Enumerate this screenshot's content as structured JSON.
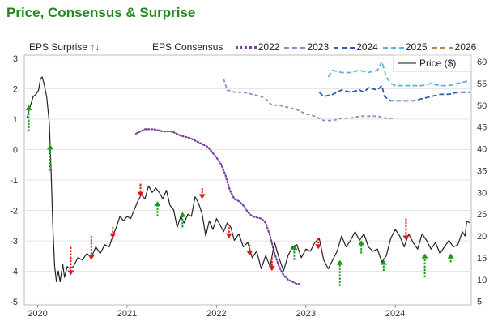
{
  "header": {
    "title": "Price, Consensus & Surprise"
  },
  "legend": {
    "surprise_label": "EPS Surprise",
    "up_glyph": "↑",
    "down_glyph": "↓",
    "consensus_label": "EPS Consensus",
    "price_label": "Price ($)"
  },
  "colors": {
    "price": "#222222",
    "surprise_up": "#1a9a1a",
    "surprise_down": "#e01818",
    "c2022": "#7b3fa5",
    "c2023": "#a87ec8",
    "c2024": "#2a5fb0",
    "c2025": "#5ab0e0",
    "c2026": "#b08a50",
    "grid": "#e3e3e3"
  },
  "chart_data": {
    "type": "line",
    "title": "Price, Consensus & Surprise",
    "x_axis": {
      "ticks": [
        "2020",
        "2021",
        "2022",
        "2023",
        "2024"
      ],
      "range": [
        2019.85,
        2024.85
      ]
    },
    "y_left": {
      "label": "EPS Surprise",
      "ticks": [
        3,
        2,
        1,
        0,
        -1,
        -2,
        -3,
        -4,
        -5
      ],
      "range": [
        -5.1,
        3.1
      ]
    },
    "y_right": {
      "label": "Price ($)",
      "ticks": [
        60,
        55,
        50,
        45,
        40,
        35,
        30,
        25,
        20,
        15,
        10,
        5
      ],
      "range": [
        4.2,
        61.5
      ]
    },
    "price": [
      [
        2019.88,
        47
      ],
      [
        2019.92,
        50
      ],
      [
        2019.95,
        52
      ],
      [
        2019.98,
        52.5
      ],
      [
        2020.01,
        53.5
      ],
      [
        2020.03,
        56
      ],
      [
        2020.05,
        56.5
      ],
      [
        2020.07,
        55
      ],
      [
        2020.1,
        52
      ],
      [
        2020.13,
        46
      ],
      [
        2020.15,
        35
      ],
      [
        2020.17,
        22
      ],
      [
        2020.19,
        13
      ],
      [
        2020.21,
        9.5
      ],
      [
        2020.23,
        12
      ],
      [
        2020.25,
        9.5
      ],
      [
        2020.28,
        13.5
      ],
      [
        2020.3,
        10.5
      ],
      [
        2020.33,
        13
      ],
      [
        2020.36,
        12.5
      ],
      [
        2020.4,
        13
      ],
      [
        2020.45,
        15
      ],
      [
        2020.5,
        14.5
      ],
      [
        2020.55,
        16
      ],
      [
        2020.6,
        15
      ],
      [
        2020.65,
        17.5
      ],
      [
        2020.7,
        16
      ],
      [
        2020.75,
        18
      ],
      [
        2020.8,
        17.5
      ],
      [
        2020.84,
        20
      ],
      [
        2020.88,
        22
      ],
      [
        2020.92,
        24.5
      ],
      [
        2020.96,
        23.5
      ],
      [
        2021.0,
        24.5
      ],
      [
        2021.04,
        24
      ],
      [
        2021.08,
        26
      ],
      [
        2021.12,
        28
      ],
      [
        2021.16,
        29.5
      ],
      [
        2021.2,
        28.5
      ],
      [
        2021.24,
        31.5
      ],
      [
        2021.28,
        30
      ],
      [
        2021.32,
        31
      ],
      [
        2021.36,
        30
      ],
      [
        2021.4,
        28.5
      ],
      [
        2021.44,
        30.5
      ],
      [
        2021.48,
        27
      ],
      [
        2021.52,
        26
      ],
      [
        2021.56,
        22
      ],
      [
        2021.6,
        24.5
      ],
      [
        2021.64,
        23
      ],
      [
        2021.68,
        25
      ],
      [
        2021.72,
        24.5
      ],
      [
        2021.76,
        29
      ],
      [
        2021.8,
        27.5
      ],
      [
        2021.84,
        25
      ],
      [
        2021.88,
        20
      ],
      [
        2021.92,
        23.5
      ],
      [
        2021.96,
        21.5
      ],
      [
        2022.0,
        24
      ],
      [
        2022.04,
        22.5
      ],
      [
        2022.08,
        21
      ],
      [
        2022.12,
        23
      ],
      [
        2022.16,
        22
      ],
      [
        2022.2,
        19
      ],
      [
        2022.25,
        20.5
      ],
      [
        2022.3,
        17.5
      ],
      [
        2022.35,
        18.5
      ],
      [
        2022.4,
        15
      ],
      [
        2022.45,
        16.5
      ],
      [
        2022.5,
        12.5
      ],
      [
        2022.55,
        15.5
      ],
      [
        2022.6,
        13
      ],
      [
        2022.65,
        18.5
      ],
      [
        2022.7,
        15
      ],
      [
        2022.75,
        12
      ],
      [
        2022.8,
        15.5
      ],
      [
        2022.85,
        17.5
      ],
      [
        2022.9,
        18
      ],
      [
        2022.95,
        15
      ],
      [
        2023.0,
        17
      ],
      [
        2023.05,
        16.5
      ],
      [
        2023.1,
        18.5
      ],
      [
        2023.15,
        19.5
      ],
      [
        2023.2,
        14.5
      ],
      [
        2023.25,
        12.5
      ],
      [
        2023.3,
        14.5
      ],
      [
        2023.35,
        16.5
      ],
      [
        2023.4,
        20
      ],
      [
        2023.45,
        17.5
      ],
      [
        2023.5,
        19
      ],
      [
        2023.55,
        21
      ],
      [
        2023.6,
        19
      ],
      [
        2023.65,
        20.5
      ],
      [
        2023.7,
        17.5
      ],
      [
        2023.75,
        16.5
      ],
      [
        2023.8,
        17
      ],
      [
        2023.85,
        14
      ],
      [
        2023.9,
        15.5
      ],
      [
        2023.95,
        19.5
      ],
      [
        2024.0,
        21.5
      ],
      [
        2024.05,
        20
      ],
      [
        2024.1,
        17.5
      ],
      [
        2024.15,
        20.5
      ],
      [
        2024.2,
        18.5
      ],
      [
        2024.25,
        17
      ],
      [
        2024.3,
        20.5
      ],
      [
        2024.35,
        19
      ],
      [
        2024.4,
        17
      ],
      [
        2024.45,
        18.5
      ],
      [
        2024.5,
        16
      ],
      [
        2024.55,
        17.5
      ],
      [
        2024.6,
        19
      ],
      [
        2024.65,
        17.5
      ],
      [
        2024.7,
        18
      ],
      [
        2024.75,
        21
      ],
      [
        2024.78,
        20
      ],
      [
        2024.8,
        23.5
      ],
      [
        2024.83,
        23
      ]
    ],
    "consensus": [
      {
        "name": "2022",
        "color_key": "c2022",
        "dash": "1.5 2.5",
        "points": [
          [
            2021.1,
            43.5
          ],
          [
            2021.2,
            44.5
          ],
          [
            2021.3,
            44.5
          ],
          [
            2021.4,
            44
          ],
          [
            2021.5,
            44
          ],
          [
            2021.6,
            43
          ],
          [
            2021.7,
            42.5
          ],
          [
            2021.8,
            41.5
          ],
          [
            2021.9,
            40.5
          ],
          [
            2022.0,
            38
          ],
          [
            2022.05,
            36.5
          ],
          [
            2022.1,
            34
          ],
          [
            2022.15,
            30.5
          ],
          [
            2022.2,
            28.5
          ],
          [
            2022.25,
            28
          ],
          [
            2022.3,
            27
          ],
          [
            2022.35,
            25.5
          ],
          [
            2022.4,
            24.5
          ],
          [
            2022.5,
            24
          ],
          [
            2022.55,
            23
          ],
          [
            2022.6,
            20
          ],
          [
            2022.65,
            16
          ],
          [
            2022.7,
            13
          ],
          [
            2022.75,
            11
          ],
          [
            2022.8,
            10
          ],
          [
            2022.85,
            9.5
          ],
          [
            2022.9,
            9
          ],
          [
            2022.95,
            9
          ]
        ]
      },
      {
        "name": "2023",
        "color_key": "c2023",
        "dash": "4 3",
        "points": [
          [
            2022.08,
            56
          ],
          [
            2022.12,
            53.5
          ],
          [
            2022.2,
            53
          ],
          [
            2022.3,
            53
          ],
          [
            2022.4,
            52.5
          ],
          [
            2022.5,
            52
          ],
          [
            2022.55,
            51.5
          ],
          [
            2022.62,
            50
          ],
          [
            2022.7,
            50
          ],
          [
            2022.8,
            49.5
          ],
          [
            2022.9,
            49
          ],
          [
            2023.0,
            48
          ],
          [
            2023.1,
            47.5
          ],
          [
            2023.2,
            46.5
          ],
          [
            2023.3,
            46.5
          ],
          [
            2023.4,
            47
          ],
          [
            2023.5,
            47
          ],
          [
            2023.6,
            47.5
          ],
          [
            2023.7,
            47.5
          ],
          [
            2023.8,
            47.5
          ],
          [
            2023.9,
            47
          ],
          [
            2024.0,
            47
          ]
        ]
      },
      {
        "name": "2024",
        "color_key": "c2024",
        "dash": "6 3",
        "points": [
          [
            2023.15,
            53
          ],
          [
            2023.2,
            52
          ],
          [
            2023.3,
            52.5
          ],
          [
            2023.4,
            53.5
          ],
          [
            2023.5,
            53
          ],
          [
            2023.6,
            53.5
          ],
          [
            2023.65,
            53
          ],
          [
            2023.7,
            54
          ],
          [
            2023.8,
            53.5
          ],
          [
            2023.85,
            54.5
          ],
          [
            2023.88,
            52
          ],
          [
            2023.95,
            51
          ],
          [
            2024.0,
            51
          ],
          [
            2024.1,
            51
          ],
          [
            2024.2,
            51
          ],
          [
            2024.3,
            51.5
          ],
          [
            2024.4,
            52
          ],
          [
            2024.5,
            52.5
          ],
          [
            2024.6,
            52.5
          ],
          [
            2024.7,
            53
          ],
          [
            2024.8,
            53
          ],
          [
            2024.84,
            53
          ]
        ]
      },
      {
        "name": "2025",
        "color_key": "c2025",
        "dash": "6 3",
        "points": [
          [
            2023.25,
            56.5
          ],
          [
            2023.3,
            58
          ],
          [
            2023.4,
            57.5
          ],
          [
            2023.5,
            57.5
          ],
          [
            2023.6,
            58
          ],
          [
            2023.7,
            57.5
          ],
          [
            2023.8,
            58
          ],
          [
            2023.85,
            60
          ],
          [
            2023.9,
            56.5
          ],
          [
            2023.95,
            55
          ],
          [
            2024.0,
            54.5
          ],
          [
            2024.1,
            54.5
          ],
          [
            2024.2,
            54.5
          ],
          [
            2024.3,
            54.5
          ],
          [
            2024.4,
            55
          ],
          [
            2024.5,
            54.5
          ],
          [
            2024.6,
            54.5
          ],
          [
            2024.7,
            55
          ],
          [
            2024.8,
            55.5
          ],
          [
            2024.84,
            55.5
          ]
        ]
      },
      {
        "name": "2026",
        "color_key": "c2026",
        "dash": "6 3",
        "points": [
          [
            2024.17,
            59
          ],
          [
            2024.25,
            59
          ],
          [
            2024.35,
            58.5
          ],
          [
            2024.45,
            58.5
          ],
          [
            2024.55,
            58
          ],
          [
            2024.65,
            58
          ],
          [
            2024.75,
            58.5
          ],
          [
            2024.84,
            58.5
          ]
        ]
      }
    ],
    "surprises": [
      {
        "x": 2019.9,
        "dir": "up",
        "from": 44,
        "to": 50
      },
      {
        "x": 2020.14,
        "dir": "up",
        "from": 35,
        "to": 41
      },
      {
        "x": 2020.37,
        "dir": "down",
        "from": 17.5,
        "to": 11
      },
      {
        "x": 2020.6,
        "dir": "down",
        "from": 20,
        "to": 14.5
      },
      {
        "x": 2020.84,
        "dir": "down",
        "from": 22,
        "to": 19.5
      },
      {
        "x": 2021.15,
        "dir": "down",
        "from": 32,
        "to": 29
      },
      {
        "x": 2021.34,
        "dir": "up",
        "from": 24.5,
        "to": 28
      },
      {
        "x": 2021.62,
        "dir": "up",
        "from": 22,
        "to": 25.5
      },
      {
        "x": 2021.84,
        "dir": "down",
        "from": 31,
        "to": 28.5
      },
      {
        "x": 2022.14,
        "dir": "down",
        "from": 22,
        "to": 19.5
      },
      {
        "x": 2022.37,
        "dir": "down",
        "from": 18,
        "to": 15.5
      },
      {
        "x": 2022.62,
        "dir": "down",
        "from": 15,
        "to": 12
      },
      {
        "x": 2022.87,
        "dir": "up",
        "from": 14.5,
        "to": 18
      },
      {
        "x": 2023.14,
        "dir": "down",
        "from": 19.5,
        "to": 17
      },
      {
        "x": 2023.38,
        "dir": "up",
        "from": 8.5,
        "to": 14.5
      },
      {
        "x": 2023.62,
        "dir": "up",
        "from": 16,
        "to": 19
      },
      {
        "x": 2023.87,
        "dir": "up",
        "from": 12,
        "to": 14.5
      },
      {
        "x": 2024.12,
        "dir": "down",
        "from": 24,
        "to": 19
      },
      {
        "x": 2024.33,
        "dir": "up",
        "from": 10.5,
        "to": 16
      },
      {
        "x": 2024.62,
        "dir": "up",
        "from": 14,
        "to": 16
      }
    ]
  }
}
